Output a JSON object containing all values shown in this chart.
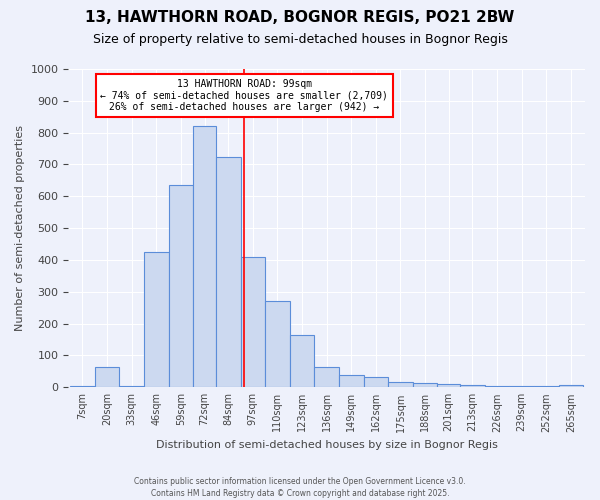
{
  "title": "13, HAWTHORN ROAD, BOGNOR REGIS, PO21 2BW",
  "subtitle": "Size of property relative to semi-detached houses in Bognor Regis",
  "xlabel": "Distribution of semi-detached houses by size in Bognor Regis",
  "ylabel": "Number of semi-detached properties",
  "bar_labels": [
    "7sqm",
    "20sqm",
    "33sqm",
    "46sqm",
    "59sqm",
    "72sqm",
    "84sqm",
    "97sqm",
    "110sqm",
    "123sqm",
    "136sqm",
    "149sqm",
    "162sqm",
    "175sqm",
    "188sqm",
    "201sqm",
    "213sqm",
    "226sqm",
    "239sqm",
    "252sqm",
    "265sqm"
  ],
  "bar_values": [
    5,
    63,
    5,
    425,
    635,
    820,
    725,
    410,
    270,
    165,
    63,
    40,
    33,
    18,
    15,
    10,
    8,
    5,
    4,
    4,
    8
  ],
  "bar_color": "#ccd9f0",
  "bar_edge_color": "#5b8dd9",
  "property_line_x": 99,
  "annotation_text_line1": "13 HAWTHORN ROAD: 99sqm",
  "annotation_text_line2": "← 74% of semi-detached houses are smaller (2,709)",
  "annotation_text_line3": "26% of semi-detached houses are larger (942) →",
  "ylim": [
    0,
    1000
  ],
  "yticks": [
    0,
    100,
    200,
    300,
    400,
    500,
    600,
    700,
    800,
    900,
    1000
  ],
  "background_color": "#eef1fb",
  "footer_line1": "Contains HM Land Registry data © Crown copyright and database right 2025.",
  "footer_line2": "Contains public sector information licensed under the Open Government Licence v3.0.",
  "bin_edges": [
    7,
    20,
    33,
    46,
    59,
    72,
    84,
    97,
    110,
    123,
    136,
    149,
    162,
    175,
    188,
    201,
    213,
    226,
    239,
    252,
    265,
    278
  ]
}
